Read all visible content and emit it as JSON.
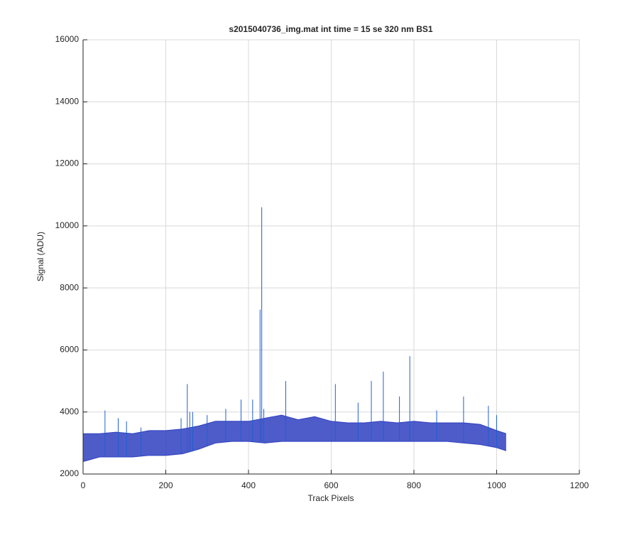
{
  "chart_data": {
    "type": "line",
    "title": "s2015040736_img.mat int time = 15 se  320 nm BS1",
    "x_label": "Track Pixels",
    "y_label": "Signal (ADU)",
    "xlim": [
      0,
      1200
    ],
    "ylim": [
      2000,
      16000
    ],
    "xticks": [
      0,
      200,
      400,
      600,
      800,
      1000,
      1200
    ],
    "yticks": [
      2000,
      4000,
      6000,
      8000,
      10000,
      12000,
      14000,
      16000
    ],
    "grid": true,
    "fill_between": true,
    "x": [
      0,
      40,
      80,
      120,
      160,
      200,
      240,
      280,
      320,
      360,
      400,
      440,
      480,
      520,
      560,
      600,
      640,
      680,
      720,
      760,
      800,
      840,
      880,
      920,
      960,
      1000,
      1023
    ],
    "series": [
      {
        "color": "#2f3fbf",
        "values": [
          2400,
          2550,
          2550,
          2550,
          2600,
          2600,
          2650,
          2800,
          3000,
          3050,
          3050,
          3000,
          3050,
          3050,
          3050,
          3050,
          3050,
          3050,
          3050,
          3050,
          3050,
          3050,
          3050,
          3000,
          2950,
          2850,
          2750
        ]
      },
      {
        "color": "#2f3fbf",
        "values": [
          3300,
          3300,
          3350,
          3300,
          3400,
          3400,
          3450,
          3550,
          3700,
          3700,
          3700,
          3800,
          3900,
          3750,
          3850,
          3700,
          3650,
          3650,
          3700,
          3650,
          3700,
          3650,
          3650,
          3650,
          3600,
          3400,
          3300
        ]
      },
      {
        "color": "#1f5fd0",
        "style": "stem",
        "x": [
          53,
          85,
          105,
          140,
          237,
          252,
          258,
          265,
          300,
          345,
          382,
          410,
          428,
          432,
          437,
          490,
          610,
          665,
          697,
          726,
          765,
          790,
          855,
          920,
          980,
          1000
        ],
        "values": [
          4050,
          3800,
          3700,
          3500,
          3800,
          4900,
          4000,
          4000,
          3900,
          4100,
          4400,
          4400,
          7300,
          10600,
          4100,
          5000,
          4900,
          4300,
          5000,
          5300,
          4500,
          5800,
          4050,
          4500,
          4200,
          3900
        ]
      }
    ]
  }
}
